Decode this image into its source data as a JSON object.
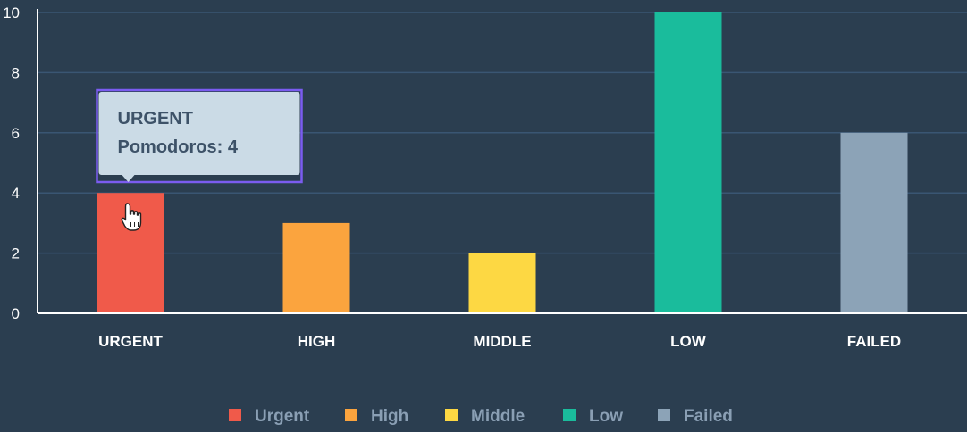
{
  "chart_data": {
    "type": "bar",
    "categories": [
      "URGENT",
      "HIGH",
      "MIDDLE",
      "LOW",
      "FAILED"
    ],
    "values": [
      4,
      3,
      2,
      10,
      6
    ],
    "colors": [
      "#f05a4a",
      "#fba43e",
      "#fdd843",
      "#1abc9c",
      "#8ca3b7"
    ],
    "ylim": [
      0,
      10
    ],
    "yticks": [
      "0",
      "2",
      "4",
      "6",
      "8",
      "10"
    ],
    "grid": true,
    "legend": {
      "position": "bottom",
      "entries": [
        "Urgent",
        "High",
        "Middle",
        "Low",
        "Failed"
      ]
    },
    "tooltip": {
      "category": "URGENT",
      "lines": [
        "URGENT",
        "Pomodoros: 4"
      ]
    }
  },
  "theme": {
    "background": "#2b3e50",
    "grid_color": "#3a5673",
    "axis_color": "#ffffff",
    "tooltip_bg": "#cbdbe6",
    "tooltip_border": "#7b5cf0"
  },
  "cursor_icon": "hand-pointer-icon"
}
